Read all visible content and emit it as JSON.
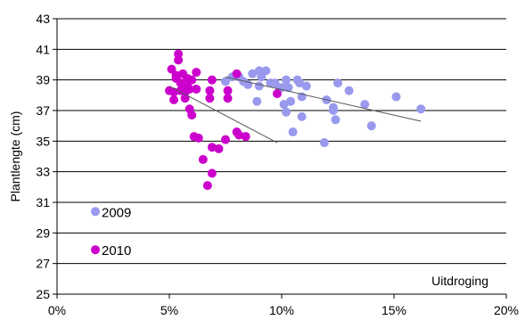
{
  "chart_data": {
    "type": "scatter",
    "title": "",
    "xlabel": "Uitdroging",
    "ylabel": "Plantlengte (cm)",
    "xlim": [
      0,
      0.2
    ],
    "ylim": [
      25,
      43
    ],
    "x_ticks": [
      0,
      0.05,
      0.1,
      0.15,
      0.2
    ],
    "x_tick_labels": [
      "0%",
      "5%",
      "10%",
      "15%",
      "20%"
    ],
    "y_ticks": [
      25,
      27,
      29,
      31,
      33,
      35,
      37,
      39,
      41,
      43
    ],
    "y_tick_labels": [
      "25",
      "27",
      "29",
      "31",
      "33",
      "35",
      "37",
      "39",
      "41",
      "43"
    ],
    "grid": {
      "horizontal": true,
      "vertical": false
    },
    "legend_position": "left",
    "series": [
      {
        "name": "2009",
        "color": "#9999ee",
        "points": [
          [
            0.075,
            38.9
          ],
          [
            0.078,
            39.2
          ],
          [
            0.081,
            39.2
          ],
          [
            0.083,
            38.9
          ],
          [
            0.085,
            38.7
          ],
          [
            0.087,
            39.4
          ],
          [
            0.089,
            37.6
          ],
          [
            0.09,
            38.6
          ],
          [
            0.09,
            39.6
          ],
          [
            0.091,
            39.2
          ],
          [
            0.093,
            39.6
          ],
          [
            0.095,
            38.8
          ],
          [
            0.097,
            38.8
          ],
          [
            0.099,
            38.5
          ],
          [
            0.1,
            38.5
          ],
          [
            0.101,
            37.4
          ],
          [
            0.102,
            39.0
          ],
          [
            0.102,
            36.9
          ],
          [
            0.103,
            38.5
          ],
          [
            0.104,
            37.6
          ],
          [
            0.105,
            35.6
          ],
          [
            0.107,
            39.0
          ],
          [
            0.108,
            38.8
          ],
          [
            0.109,
            36.6
          ],
          [
            0.109,
            37.9
          ],
          [
            0.111,
            38.6
          ],
          [
            0.119,
            34.9
          ],
          [
            0.12,
            37.7
          ],
          [
            0.123,
            37.2
          ],
          [
            0.123,
            37.0
          ],
          [
            0.124,
            36.4
          ],
          [
            0.125,
            38.8
          ],
          [
            0.13,
            38.3
          ],
          [
            0.137,
            37.4
          ],
          [
            0.14,
            36.0
          ],
          [
            0.151,
            37.9
          ],
          [
            0.162,
            37.1
          ]
        ]
      },
      {
        "name": "2010",
        "color": "#cc00cc",
        "points": [
          [
            0.05,
            38.3
          ],
          [
            0.051,
            39.7
          ],
          [
            0.052,
            38.2
          ],
          [
            0.052,
            37.7
          ],
          [
            0.053,
            39.1
          ],
          [
            0.053,
            39.3
          ],
          [
            0.054,
            40.7
          ],
          [
            0.054,
            40.3
          ],
          [
            0.055,
            38.3
          ],
          [
            0.055,
            38.8
          ],
          [
            0.056,
            39.4
          ],
          [
            0.057,
            38.2
          ],
          [
            0.057,
            37.8
          ],
          [
            0.058,
            39.1
          ],
          [
            0.058,
            38.6
          ],
          [
            0.059,
            38.4
          ],
          [
            0.059,
            37.1
          ],
          [
            0.06,
            36.7
          ],
          [
            0.06,
            39.0
          ],
          [
            0.061,
            35.3
          ],
          [
            0.062,
            38.4
          ],
          [
            0.062,
            39.5
          ],
          [
            0.063,
            35.2
          ],
          [
            0.065,
            33.8
          ],
          [
            0.067,
            32.1
          ],
          [
            0.068,
            37.8
          ],
          [
            0.068,
            38.3
          ],
          [
            0.069,
            39.0
          ],
          [
            0.069,
            34.6
          ],
          [
            0.069,
            32.9
          ],
          [
            0.072,
            34.5
          ],
          [
            0.075,
            35.1
          ],
          [
            0.076,
            37.8
          ],
          [
            0.076,
            38.3
          ],
          [
            0.08,
            35.6
          ],
          [
            0.08,
            39.4
          ],
          [
            0.081,
            35.4
          ],
          [
            0.084,
            35.3
          ],
          [
            0.098,
            38.1
          ]
        ]
      }
    ],
    "trendlines": [
      {
        "series": "2009",
        "from": [
          0.075,
          39.2
        ],
        "to": [
          0.162,
          36.3
        ]
      },
      {
        "series": "2010",
        "from": [
          0.05,
          38.6
        ],
        "to": [
          0.098,
          34.9
        ]
      }
    ]
  }
}
